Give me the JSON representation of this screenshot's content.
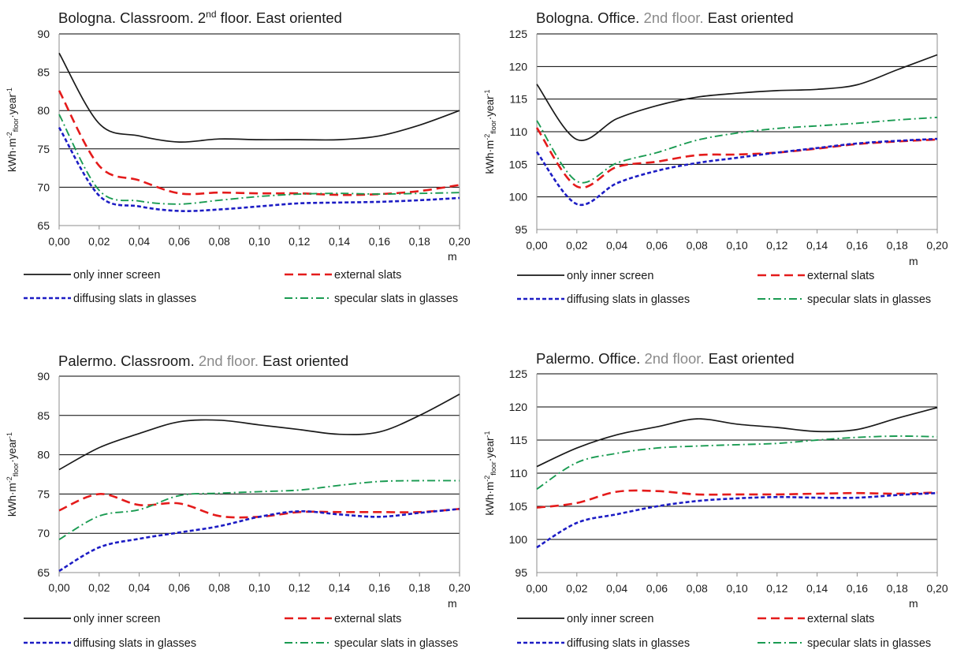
{
  "series_styles": [
    {
      "key": "inner",
      "color": "#1a1a1a",
      "dash": "",
      "width": 1.7
    },
    {
      "key": "external",
      "color": "#e41b1b",
      "dash": "11 6",
      "width": 2.6
    },
    {
      "key": "diffusing",
      "color": "#1c1cc4",
      "dash": "5 3",
      "width": 2.6
    },
    {
      "key": "specular",
      "color": "#1a9b52",
      "dash": "10 4 2 4",
      "width": 1.9
    }
  ],
  "chart_data": [
    {
      "type": "line",
      "title_prefix": "Bologna. Classroom. 2",
      "title_sup": "nd",
      "title_mid": " floor.",
      "title_suffix": " East oriented",
      "ylabel": "kWh·m-2floor·year-1",
      "xlabel": "m",
      "x_tick_labels": [
        "0,00",
        "0,02",
        "0,04",
        "0,06",
        "0,08",
        "0,10",
        "0,12",
        "0,14",
        "0,16",
        "0,18",
        "0,20"
      ],
      "xlim": [
        0,
        0.2
      ],
      "ylim": [
        65,
        90
      ],
      "y_ticks": [
        65,
        70,
        75,
        80,
        85,
        90
      ],
      "grid": true,
      "legend": [
        "only inner screen",
        "external slats",
        "diffusing slats in glasses",
        "specular slats in glasses"
      ],
      "x": [
        0,
        0.02,
        0.04,
        0.06,
        0.08,
        0.1,
        0.12,
        0.14,
        0.16,
        0.18,
        0.2
      ],
      "series": [
        {
          "name": "only inner screen",
          "values": [
            87.5,
            78.3,
            76.7,
            75.9,
            76.3,
            76.2,
            76.2,
            76.2,
            76.7,
            78.1,
            80.0
          ]
        },
        {
          "name": "external slats",
          "values": [
            82.6,
            72.8,
            70.9,
            69.2,
            69.3,
            69.2,
            69.2,
            69.0,
            69.1,
            69.5,
            70.3
          ]
        },
        {
          "name": "diffusing slats in glasses",
          "values": [
            77.8,
            68.9,
            67.5,
            66.9,
            67.1,
            67.5,
            67.9,
            68.0,
            68.1,
            68.3,
            68.6
          ]
        },
        {
          "name": "specular slats in glasses",
          "values": [
            79.5,
            69.6,
            68.2,
            67.8,
            68.3,
            68.8,
            69.1,
            69.2,
            69.1,
            69.2,
            69.3
          ]
        }
      ]
    },
    {
      "type": "line",
      "title_prefix": "Bologna. Office. ",
      "title_sup": "",
      "title_mid": "2nd floor.",
      "title_suffix": " East oriented",
      "ylabel": "kWh·m-2floor·year-1",
      "xlabel": "m",
      "x_tick_labels": [
        "0,00",
        "0,02",
        "0,04",
        "0,06",
        "0,08",
        "0,10",
        "0,12",
        "0,14",
        "0,16",
        "0,18",
        "0,20"
      ],
      "xlim": [
        0,
        0.2
      ],
      "ylim": [
        95,
        125
      ],
      "y_ticks": [
        95,
        100,
        105,
        110,
        115,
        120,
        125
      ],
      "grid": true,
      "legend": [
        "only inner screen",
        "external slats",
        "diffusing slats in glasses",
        "specular slats in glasses"
      ],
      "x": [
        0,
        0.02,
        0.04,
        0.06,
        0.08,
        0.1,
        0.12,
        0.14,
        0.16,
        0.18,
        0.2
      ],
      "series": [
        {
          "name": "only inner screen",
          "values": [
            117.3,
            108.8,
            112.0,
            114.0,
            115.3,
            115.9,
            116.3,
            116.5,
            117.2,
            119.5,
            121.8
          ]
        },
        {
          "name": "external slats",
          "values": [
            110.6,
            101.6,
            104.6,
            105.4,
            106.4,
            106.5,
            106.8,
            107.4,
            108.1,
            108.5,
            108.8
          ]
        },
        {
          "name": "diffusing slats in glasses",
          "values": [
            106.9,
            98.9,
            102.1,
            104.0,
            105.2,
            106.0,
            106.8,
            107.5,
            108.2,
            108.6,
            108.9
          ]
        },
        {
          "name": "specular slats in glasses",
          "values": [
            111.7,
            102.4,
            105.2,
            106.8,
            108.7,
            109.8,
            110.5,
            110.9,
            111.3,
            111.8,
            112.2
          ]
        }
      ]
    },
    {
      "type": "line",
      "title_prefix": "Palermo. Classroom. ",
      "title_sup": "",
      "title_mid": "2nd floor.",
      "title_suffix": " East oriented",
      "ylabel": "kWh·m-2floor·year-1",
      "xlabel": "m",
      "x_tick_labels": [
        "0,00",
        "0,02",
        "0,04",
        "0,06",
        "0,08",
        "0,10",
        "0,12",
        "0,14",
        "0,16",
        "0,18",
        "0,20"
      ],
      "xlim": [
        0,
        0.2
      ],
      "ylim": [
        65,
        90
      ],
      "y_ticks": [
        65,
        70,
        75,
        80,
        85,
        90
      ],
      "grid": true,
      "legend": [
        "only inner screen",
        "external slats",
        "diffusing slats in glasses",
        "specular slats in glasses"
      ],
      "x": [
        0,
        0.02,
        0.04,
        0.06,
        0.08,
        0.1,
        0.12,
        0.14,
        0.16,
        0.18,
        0.2
      ],
      "series": [
        {
          "name": "only inner screen",
          "values": [
            78.1,
            80.9,
            82.7,
            84.2,
            84.4,
            83.8,
            83.2,
            82.6,
            82.9,
            85.0,
            87.7
          ]
        },
        {
          "name": "external slats",
          "values": [
            72.9,
            75.0,
            73.6,
            73.8,
            72.2,
            72.1,
            72.7,
            72.7,
            72.7,
            72.7,
            73.1
          ]
        },
        {
          "name": "diffusing slats in glasses",
          "values": [
            65.2,
            68.2,
            69.3,
            70.1,
            70.9,
            72.1,
            72.8,
            72.4,
            72.1,
            72.6,
            73.1
          ]
        },
        {
          "name": "specular slats in glasses",
          "values": [
            69.2,
            72.2,
            73.0,
            74.8,
            75.1,
            75.3,
            75.5,
            76.1,
            76.6,
            76.7,
            76.7
          ]
        }
      ]
    },
    {
      "type": "line",
      "title_prefix": "Palermo. Office. ",
      "title_sup": "",
      "title_mid": "2nd floor.",
      "title_suffix": " East oriented",
      "ylabel": "kWh·m-2floor·year-1",
      "xlabel": "m",
      "x_tick_labels": [
        "0,00",
        "0,02",
        "0,04",
        "0,06",
        "0,08",
        "0,10",
        "0,12",
        "0,14",
        "0,16",
        "0,18",
        "0,20"
      ],
      "xlim": [
        0,
        0.2
      ],
      "ylim": [
        95,
        125
      ],
      "y_ticks": [
        95,
        100,
        105,
        110,
        115,
        120,
        125
      ],
      "grid": true,
      "legend": [
        "only inner screen",
        "external slats",
        "diffusing slats in glasses",
        "specular slats in glasses"
      ],
      "x": [
        0,
        0.02,
        0.04,
        0.06,
        0.08,
        0.1,
        0.12,
        0.14,
        0.16,
        0.18,
        0.2
      ],
      "series": [
        {
          "name": "only inner screen",
          "values": [
            111.0,
            113.8,
            115.8,
            117.0,
            118.2,
            117.4,
            116.9,
            116.3,
            116.6,
            118.3,
            119.9
          ]
        },
        {
          "name": "external slats",
          "values": [
            104.8,
            105.5,
            107.2,
            107.3,
            106.8,
            106.8,
            106.8,
            106.9,
            107.0,
            106.9,
            107.1
          ]
        },
        {
          "name": "diffusing slats in glasses",
          "values": [
            98.8,
            102.5,
            103.8,
            105.0,
            105.8,
            106.2,
            106.4,
            106.3,
            106.3,
            106.7,
            107.0
          ]
        },
        {
          "name": "specular slats in glasses",
          "values": [
            107.6,
            111.6,
            113.0,
            113.8,
            114.1,
            114.3,
            114.5,
            115.0,
            115.4,
            115.6,
            115.5
          ]
        }
      ]
    }
  ]
}
